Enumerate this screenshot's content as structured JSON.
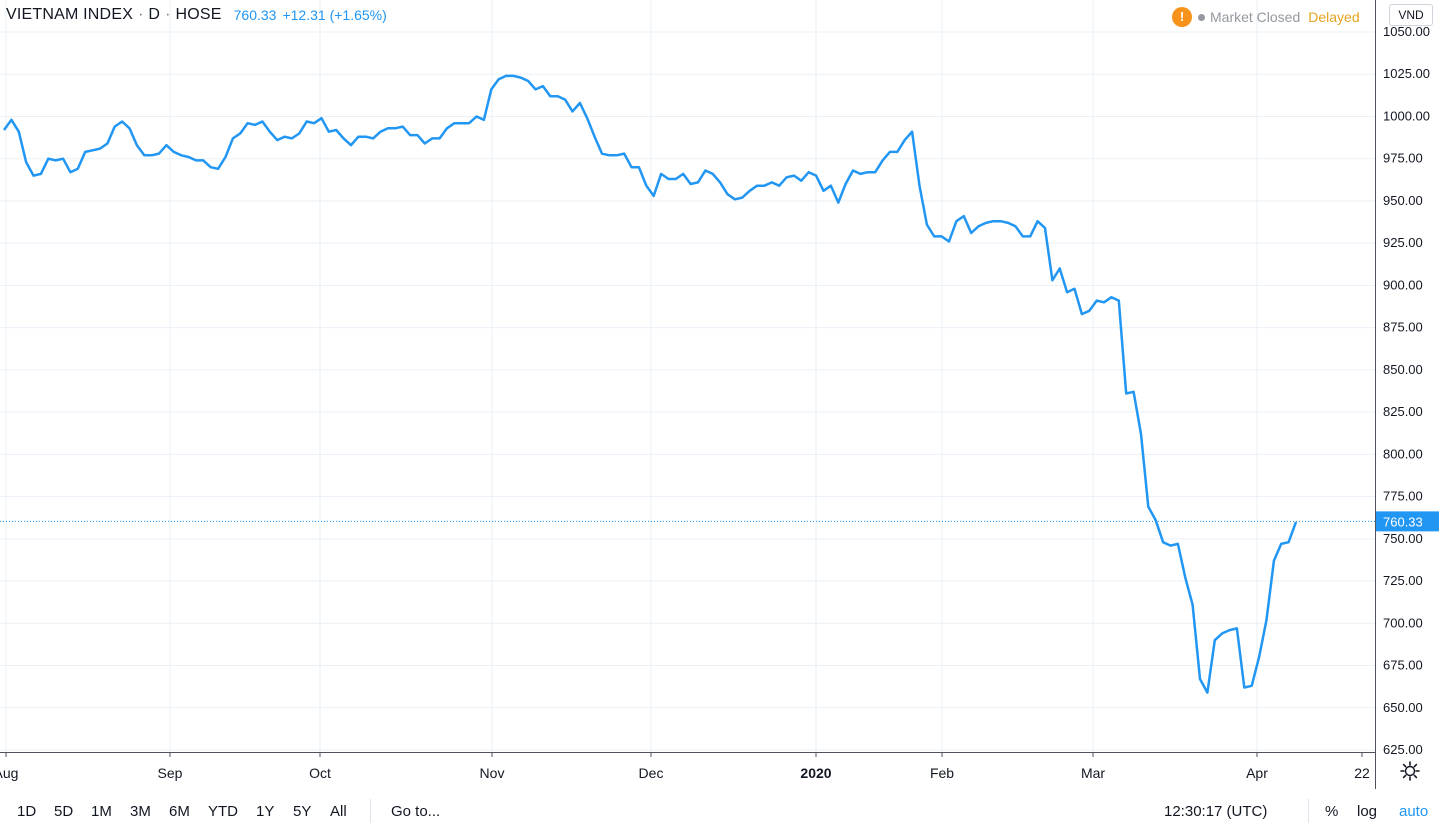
{
  "header": {
    "symbol": "VIETNAM INDEX",
    "interval": "D",
    "exchange": "HOSE",
    "last_price": "760.33",
    "change": "+12.31 (+1.65%)",
    "dot": "·"
  },
  "status": {
    "warning_glyph": "!",
    "market_state": "Market Closed",
    "data_mode": "Delayed"
  },
  "currency": "VND",
  "colors": {
    "line": "#2196f3",
    "grid": "#e9f0f6",
    "price_label_bg": "#2196f3",
    "delayed": "#e5a422",
    "warning": "#f7931a"
  },
  "chart_data": {
    "type": "line",
    "title": "VIETNAM INDEX · D · HOSE",
    "series": [
      {
        "values": [
          992,
          998,
          991,
          973,
          965,
          966,
          975,
          974,
          975,
          967,
          969,
          979,
          980,
          981,
          984,
          994,
          997,
          993,
          983,
          977,
          977,
          978,
          983,
          979,
          977,
          976,
          974,
          974,
          970,
          969,
          976,
          987,
          990,
          996,
          995,
          997,
          991,
          986,
          988,
          987,
          990,
          997,
          996,
          999,
          991,
          992,
          987,
          983,
          988,
          988,
          987,
          991,
          993,
          993,
          994,
          989,
          989,
          984,
          987,
          987,
          993,
          996,
          996,
          996,
          1000,
          998,
          1016,
          1022,
          1024,
          1024,
          1023,
          1021,
          1016,
          1018,
          1012,
          1012,
          1010,
          1003,
          1008,
          999,
          988,
          978,
          977,
          977,
          978,
          970,
          970,
          959,
          953,
          966,
          963,
          963,
          966,
          960,
          961,
          968,
          966,
          961,
          954,
          951,
          952,
          956,
          959,
          959,
          961,
          959,
          964,
          965,
          962,
          967,
          965,
          956,
          959,
          949,
          960,
          968,
          966,
          967,
          967,
          974,
          979,
          979,
          986,
          991,
          959,
          936,
          929,
          929,
          926,
          938,
          941,
          931,
          935,
          937,
          938,
          938,
          937,
          935,
          929,
          929,
          938,
          934,
          903,
          910,
          896,
          898,
          883,
          885,
          891,
          890,
          893,
          891,
          836,
          837,
          812,
          769,
          761,
          748,
          746,
          747,
          727,
          711,
          667,
          659,
          690,
          694,
          696,
          697,
          662,
          663,
          680,
          702,
          737,
          747,
          748,
          760
        ]
      }
    ],
    "x_labels": [
      "Aug",
      "Sep",
      "Oct",
      "Nov",
      "Dec",
      "2020",
      "Feb",
      "Mar",
      "Apr",
      "22"
    ],
    "x_label_bold": "2020",
    "y_ticks": [
      625,
      650,
      675,
      700,
      725,
      750,
      775,
      800,
      825,
      850,
      875,
      900,
      925,
      950,
      975,
      1000,
      1025,
      1050
    ],
    "ylim": [
      625,
      1050
    ],
    "last_value": 760.33,
    "grid": true,
    "y_axis_side": "right"
  },
  "toolbar": {
    "ranges": [
      "1D",
      "5D",
      "1M",
      "3M",
      "6M",
      "YTD",
      "1Y",
      "5Y",
      "All"
    ],
    "goto": "Go to...",
    "clock": "12:30:17 (UTC)",
    "percent": "%",
    "log": "log",
    "auto": "auto"
  }
}
